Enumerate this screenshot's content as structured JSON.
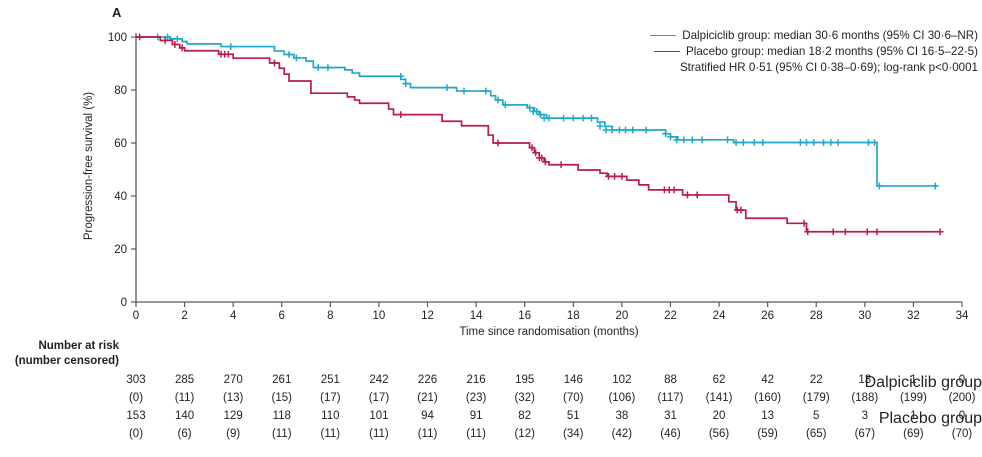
{
  "panel_label": "A",
  "colors": {
    "dalpiciclib": "#21a9c7",
    "placebo": "#bb1b4f",
    "axis": "#58595b",
    "text": "#231f20"
  },
  "legend": {
    "entries": [
      {
        "label": "Dalpiciclib group: median 30·6 months (95% CI 30·6–NR)",
        "color_key": "dalpiciclib"
      },
      {
        "label": "Placebo group: median 18·2 months (95% CI 16·5–22·5)",
        "color_key": "placebo"
      }
    ],
    "note": "Stratified HR 0·51 (95% CI 0·38–0·69); log-rank p<0·0001"
  },
  "chart_data": {
    "type": "line",
    "subtype": "kaplan-meier-step",
    "title": "",
    "xlabel": "Time since randomisation (months)",
    "ylabel": "Progression-free survival (%)",
    "xlim": [
      0,
      34
    ],
    "ylim": [
      0,
      100
    ],
    "xticks": [
      0,
      2,
      4,
      6,
      8,
      10,
      12,
      14,
      16,
      18,
      20,
      22,
      24,
      26,
      28,
      30,
      32,
      34
    ],
    "yticks": [
      0,
      20,
      40,
      60,
      80,
      100
    ],
    "grid": false,
    "legend_position": "top-right",
    "series": [
      {
        "name": "Dalpiciclib group",
        "color_key": "dalpiciclib",
        "end_time": 33.0,
        "steps": [
          [
            0,
            100
          ],
          [
            1.4,
            99.3
          ],
          [
            1.9,
            98.3
          ],
          [
            2.1,
            97.4
          ],
          [
            3.5,
            96.4
          ],
          [
            5.7,
            94.7
          ],
          [
            6.1,
            93.4
          ],
          [
            6.5,
            92.1
          ],
          [
            7.0,
            90.9
          ],
          [
            7.3,
            88.5
          ],
          [
            8.6,
            87.6
          ],
          [
            8.9,
            86.4
          ],
          [
            9.2,
            85.2
          ],
          [
            10.9,
            84.0
          ],
          [
            11.1,
            82.4
          ],
          [
            11.3,
            80.9
          ],
          [
            13.2,
            79.6
          ],
          [
            14.6,
            77.8
          ],
          [
            14.8,
            76.2
          ],
          [
            15.1,
            74.4
          ],
          [
            16.1,
            73.3
          ],
          [
            16.4,
            71.9
          ],
          [
            16.6,
            70.7
          ],
          [
            16.9,
            69.4
          ],
          [
            19.0,
            67.9
          ],
          [
            19.3,
            66.3
          ],
          [
            19.6,
            64.9
          ],
          [
            21.8,
            63.5
          ],
          [
            22.0,
            62.3
          ],
          [
            22.3,
            61.2
          ],
          [
            24.6,
            60.2
          ],
          [
            30.5,
            43.8
          ]
        ],
        "censors": [
          [
            0.9,
            100
          ],
          [
            1.3,
            100
          ],
          [
            1.7,
            99.3
          ],
          [
            3.9,
            96.4
          ],
          [
            6.3,
            93.4
          ],
          [
            6.6,
            92.1
          ],
          [
            7.5,
            88.5
          ],
          [
            7.9,
            88.5
          ],
          [
            10.9,
            85.2
          ],
          [
            11.1,
            82.4
          ],
          [
            12.8,
            80.9
          ],
          [
            13.5,
            79.6
          ],
          [
            14.4,
            79.6
          ],
          [
            14.9,
            76.2
          ],
          [
            15.2,
            74.4
          ],
          [
            16.2,
            73.3
          ],
          [
            16.35,
            71.9
          ],
          [
            16.5,
            71.9
          ],
          [
            16.65,
            70.7
          ],
          [
            16.8,
            69.4
          ],
          [
            17.0,
            69.4
          ],
          [
            17.6,
            69.4
          ],
          [
            18.0,
            69.4
          ],
          [
            18.4,
            69.4
          ],
          [
            18.75,
            69.4
          ],
          [
            19.1,
            66.3
          ],
          [
            19.35,
            64.9
          ],
          [
            19.6,
            64.9
          ],
          [
            19.9,
            64.9
          ],
          [
            20.15,
            64.9
          ],
          [
            20.45,
            64.9
          ],
          [
            21.0,
            64.9
          ],
          [
            21.8,
            63.5
          ],
          [
            22.0,
            62.3
          ],
          [
            22.25,
            61.2
          ],
          [
            22.55,
            61.2
          ],
          [
            22.9,
            61.2
          ],
          [
            23.3,
            61.2
          ],
          [
            24.35,
            61.2
          ],
          [
            24.7,
            60.2
          ],
          [
            25.0,
            60.2
          ],
          [
            25.45,
            60.2
          ],
          [
            25.8,
            60.2
          ],
          [
            27.35,
            60.2
          ],
          [
            27.6,
            60.2
          ],
          [
            27.9,
            60.2
          ],
          [
            28.3,
            60.2
          ],
          [
            28.6,
            60.2
          ],
          [
            28.9,
            60.2
          ],
          [
            30.15,
            60.2
          ],
          [
            30.4,
            60.2
          ],
          [
            30.6,
            43.8
          ],
          [
            32.9,
            43.8
          ]
        ]
      },
      {
        "name": "Placebo group",
        "color_key": "placebo",
        "end_time": 33.2,
        "steps": [
          [
            0,
            100
          ],
          [
            1.0,
            98.7
          ],
          [
            1.5,
            97.2
          ],
          [
            1.8,
            95.9
          ],
          [
            2.0,
            94.8
          ],
          [
            3.4,
            93.5
          ],
          [
            4.0,
            92.0
          ],
          [
            5.5,
            90.2
          ],
          [
            5.9,
            88.2
          ],
          [
            6.1,
            86.0
          ],
          [
            6.3,
            83.4
          ],
          [
            7.2,
            78.8
          ],
          [
            8.7,
            77.4
          ],
          [
            9.0,
            76.2
          ],
          [
            9.2,
            75.0
          ],
          [
            10.4,
            72.8
          ],
          [
            10.6,
            70.7
          ],
          [
            12.6,
            68.2
          ],
          [
            13.4,
            66.5
          ],
          [
            14.5,
            63.0
          ],
          [
            14.7,
            60.0
          ],
          [
            16.2,
            58.2
          ],
          [
            16.4,
            56.3
          ],
          [
            16.6,
            54.4
          ],
          [
            16.8,
            52.9
          ],
          [
            17.0,
            51.8
          ],
          [
            18.2,
            49.8
          ],
          [
            19.1,
            48.6
          ],
          [
            19.4,
            47.4
          ],
          [
            20.2,
            46.0
          ],
          [
            20.7,
            44.2
          ],
          [
            21.1,
            42.3
          ],
          [
            22.5,
            40.4
          ],
          [
            24.4,
            37.8
          ],
          [
            24.7,
            34.7
          ],
          [
            25.1,
            31.6
          ],
          [
            26.8,
            29.7
          ],
          [
            27.6,
            26.5
          ]
        ],
        "censors": [
          [
            0.15,
            100
          ],
          [
            1.2,
            98.7
          ],
          [
            1.6,
            97.2
          ],
          [
            1.9,
            95.9
          ],
          [
            3.5,
            93.5
          ],
          [
            3.65,
            93.5
          ],
          [
            3.8,
            93.5
          ],
          [
            5.7,
            90.2
          ],
          [
            10.9,
            70.7
          ],
          [
            14.9,
            60.0
          ],
          [
            16.3,
            58.2
          ],
          [
            16.45,
            56.3
          ],
          [
            16.6,
            54.4
          ],
          [
            16.7,
            54.4
          ],
          [
            16.85,
            52.9
          ],
          [
            17.5,
            51.8
          ],
          [
            19.45,
            47.4
          ],
          [
            19.7,
            47.4
          ],
          [
            20.0,
            47.4
          ],
          [
            21.75,
            42.3
          ],
          [
            21.95,
            42.3
          ],
          [
            22.15,
            42.3
          ],
          [
            22.7,
            40.4
          ],
          [
            23.1,
            40.4
          ],
          [
            24.75,
            34.7
          ],
          [
            24.9,
            34.7
          ],
          [
            27.5,
            29.7
          ],
          [
            27.65,
            26.5
          ],
          [
            28.7,
            26.5
          ],
          [
            29.2,
            26.5
          ],
          [
            30.1,
            26.5
          ],
          [
            30.5,
            26.5
          ],
          [
            33.1,
            26.5
          ]
        ]
      }
    ]
  },
  "at_risk_table": {
    "header_line1": "Number at risk",
    "header_line2": "(number censored)",
    "times": [
      0,
      2,
      4,
      6,
      8,
      10,
      12,
      14,
      16,
      18,
      20,
      22,
      24,
      26,
      28,
      30,
      32,
      34
    ],
    "rows": [
      {
        "label": "Dalpiciclib group",
        "at_risk": [
          "303",
          "285",
          "270",
          "261",
          "251",
          "242",
          "226",
          "216",
          "195",
          "146",
          "102",
          "88",
          "62",
          "42",
          "22",
          "13",
          "1",
          "0"
        ],
        "censored": [
          "(0)",
          "(11)",
          "(13)",
          "(15)",
          "(17)",
          "(17)",
          "(21)",
          "(23)",
          "(32)",
          "(70)",
          "(106)",
          "(117)",
          "(141)",
          "(160)",
          "(179)",
          "(188)",
          "(199)",
          "(200)"
        ]
      },
      {
        "label": "Placebo group",
        "at_risk": [
          "153",
          "140",
          "129",
          "118",
          "110",
          "101",
          "94",
          "91",
          "82",
          "51",
          "38",
          "31",
          "20",
          "13",
          "5",
          "3",
          "1",
          "0"
        ],
        "censored": [
          "(0)",
          "(6)",
          "(9)",
          "(11)",
          "(11)",
          "(11)",
          "(11)",
          "(11)",
          "(12)",
          "(34)",
          "(42)",
          "(46)",
          "(56)",
          "(59)",
          "(65)",
          "(67)",
          "(69)",
          "(70)"
        ]
      }
    ]
  }
}
